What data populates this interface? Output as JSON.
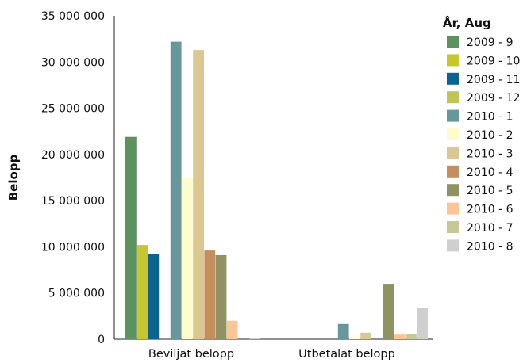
{
  "chart_data": {
    "type": "bar",
    "ylabel": "Belopp",
    "ylim": [
      0,
      35000000
    ],
    "yticks": [
      0,
      5000000,
      10000000,
      15000000,
      20000000,
      25000000,
      30000000,
      35000000
    ],
    "ytick_labels": [
      "0",
      "5 000 000",
      "10 000 000",
      "15 000 000",
      "20 000 000",
      "25 000 000",
      "30 000 000",
      "35 000 000"
    ],
    "categories": [
      "Beviljat belopp",
      "Utbetalat belopp"
    ],
    "grid": false,
    "legend": {
      "title": "År, Aug",
      "placement": "right"
    },
    "series": [
      {
        "name": "2009 - 9",
        "color": "#5e9160",
        "values": [
          21900000,
          0
        ]
      },
      {
        "name": "2009 - 10",
        "color": "#c8c62a",
        "values": [
          10200000,
          0
        ]
      },
      {
        "name": "2009 - 11",
        "color": "#0a6390",
        "values": [
          9200000,
          0
        ]
      },
      {
        "name": "2009 - 12",
        "color": "#c2c556",
        "values": [
          0,
          0
        ]
      },
      {
        "name": "2010 - 1",
        "color": "#67979a",
        "values": [
          32200000,
          1650000
        ]
      },
      {
        "name": "2010 - 2",
        "color": "#fdfccd",
        "values": [
          17500000,
          150000
        ]
      },
      {
        "name": "2010 - 3",
        "color": "#dbc791",
        "values": [
          31300000,
          700000
        ]
      },
      {
        "name": "2010 - 4",
        "color": "#c48e5f",
        "values": [
          9600000,
          0
        ]
      },
      {
        "name": "2010 - 5",
        "color": "#8f9263",
        "values": [
          9100000,
          6000000
        ]
      },
      {
        "name": "2010 - 6",
        "color": "#fbc596",
        "values": [
          2000000,
          500000
        ]
      },
      {
        "name": "2010 - 7",
        "color": "#c6c996",
        "values": [
          0,
          600000
        ]
      },
      {
        "name": "2010 - 8",
        "color": "#cfcfcf",
        "values": [
          130000,
          3350000
        ]
      }
    ]
  }
}
